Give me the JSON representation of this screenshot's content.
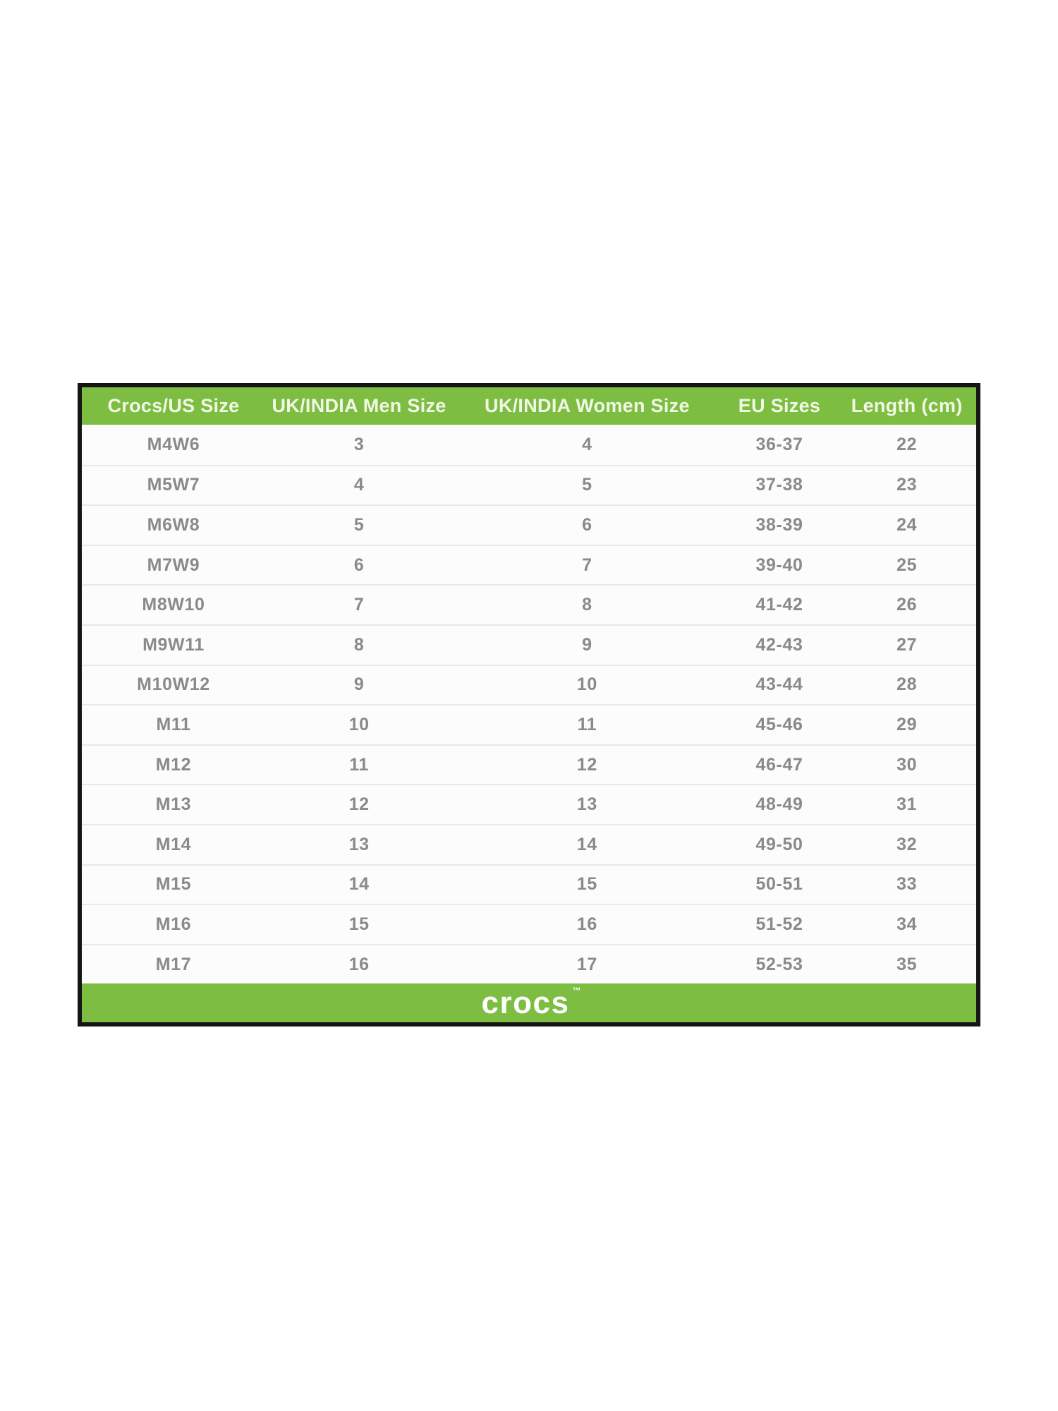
{
  "colors": {
    "brand_green": "#7dbd42",
    "border_black": "#151515",
    "header_text": "#f1f8e6",
    "row_text": "#8a8a8d",
    "row_bg": "#fcfcfc",
    "divider": "#e9e9e9",
    "page_bg": "#ffffff"
  },
  "size_chart": {
    "headers": [
      "Crocs/US Size",
      "UK/INDIA Men Size",
      "UK/INDIA Women Size",
      "EU Sizes",
      "Length (cm)"
    ],
    "rows": [
      [
        "M4W6",
        "3",
        "4",
        "36-37",
        "22"
      ],
      [
        "M5W7",
        "4",
        "5",
        "37-38",
        "23"
      ],
      [
        "M6W8",
        "5",
        "6",
        "38-39",
        "24"
      ],
      [
        "M7W9",
        "6",
        "7",
        "39-40",
        "25"
      ],
      [
        "M8W10",
        "7",
        "8",
        "41-42",
        "26"
      ],
      [
        "M9W11",
        "8",
        "9",
        "42-43",
        "27"
      ],
      [
        "M10W12",
        "9",
        "10",
        "43-44",
        "28"
      ],
      [
        "M11",
        "10",
        "11",
        "45-46",
        "29"
      ],
      [
        "M12",
        "11",
        "12",
        "46-47",
        "30"
      ],
      [
        "M13",
        "12",
        "13",
        "48-49",
        "31"
      ],
      [
        "M14",
        "13",
        "14",
        "49-50",
        "32"
      ],
      [
        "M15",
        "14",
        "15",
        "50-51",
        "33"
      ],
      [
        "M16",
        "15",
        "16",
        "51-52",
        "34"
      ],
      [
        "M17",
        "16",
        "17",
        "52-53",
        "35"
      ]
    ],
    "footer": {
      "brand": "crocs",
      "trademark": "™"
    }
  },
  "chart_data": {
    "type": "table",
    "title": "Crocs shoe size conversion chart",
    "columns": [
      "Crocs/US Size",
      "UK/INDIA Men Size",
      "UK/INDIA Women Size",
      "EU Sizes",
      "Length (cm)"
    ],
    "rows": [
      [
        "M4W6",
        "3",
        "4",
        "36-37",
        "22"
      ],
      [
        "M5W7",
        "4",
        "5",
        "37-38",
        "23"
      ],
      [
        "M6W8",
        "5",
        "6",
        "38-39",
        "24"
      ],
      [
        "M7W9",
        "6",
        "7",
        "39-40",
        "25"
      ],
      [
        "M8W10",
        "7",
        "8",
        "41-42",
        "26"
      ],
      [
        "M9W11",
        "8",
        "9",
        "42-43",
        "27"
      ],
      [
        "M10W12",
        "9",
        "10",
        "43-44",
        "28"
      ],
      [
        "M11",
        "10",
        "11",
        "45-46",
        "29"
      ],
      [
        "M12",
        "11",
        "12",
        "46-47",
        "30"
      ],
      [
        "M13",
        "12",
        "13",
        "48-49",
        "31"
      ],
      [
        "M14",
        "13",
        "14",
        "49-50",
        "32"
      ],
      [
        "M15",
        "14",
        "15",
        "50-51",
        "33"
      ],
      [
        "M16",
        "15",
        "16",
        "51-52",
        "34"
      ],
      [
        "M17",
        "16",
        "17",
        "52-53",
        "35"
      ]
    ],
    "layout": {
      "header_background": "#7dbd42",
      "footer_brand": "crocs",
      "grid": "horizontal-dividers",
      "outer_border": "black"
    }
  }
}
